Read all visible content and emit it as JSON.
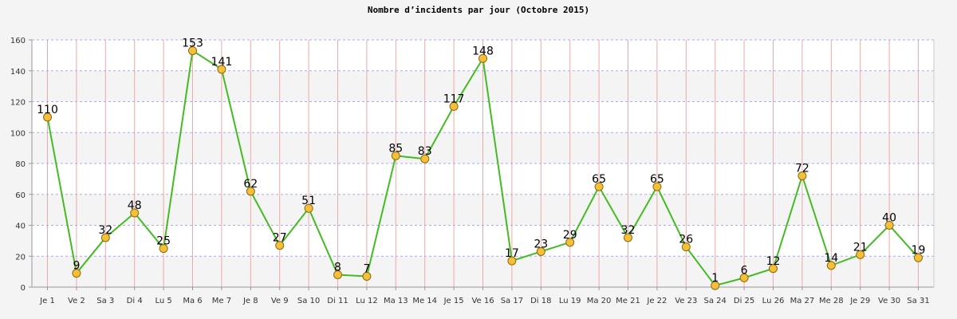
{
  "chart_data": {
    "type": "line",
    "title": "Nombre d’incidents par jour (Octobre 2015)",
    "xlabel": "",
    "ylabel": "",
    "ylim": [
      0,
      160
    ],
    "yticks": [
      "0",
      "20",
      "40",
      "60",
      "80",
      "100",
      "120",
      "140",
      "160"
    ],
    "categories": [
      "Je 1",
      "Ve 2",
      "Sa 3",
      "Di 4",
      "Lu 5",
      "Ma 6",
      "Me 7",
      "Je 8",
      "Ve 9",
      "Sa 10",
      "Di 11",
      "Lu 12",
      "Ma 13",
      "Me 14",
      "Je 15",
      "Ve 16",
      "Sa 17",
      "Di 18",
      "Lu 19",
      "Ma 20",
      "Me 21",
      "Je 22",
      "Ve 23",
      "Sa 24",
      "Di 25",
      "Lu 26",
      "Ma 27",
      "Me 28",
      "Je 29",
      "Ve 30",
      "Sa 31"
    ],
    "values": [
      110,
      9,
      32,
      48,
      25,
      153,
      141,
      62,
      27,
      51,
      8,
      7,
      85,
      83,
      117,
      148,
      17,
      23,
      29,
      65,
      32,
      65,
      26,
      1,
      6,
      12,
      72,
      14,
      21,
      40,
      19
    ],
    "grid": true,
    "legend": "none",
    "colors": {
      "line": "#44bb22",
      "marker_fill": "#f5c038",
      "marker_stroke": "#8a6a10",
      "h_grid": "#aaaaee",
      "v_grid": "#f0a8a8",
      "band_light": "#ffffff",
      "band_dark": "#f4f4f4"
    }
  }
}
